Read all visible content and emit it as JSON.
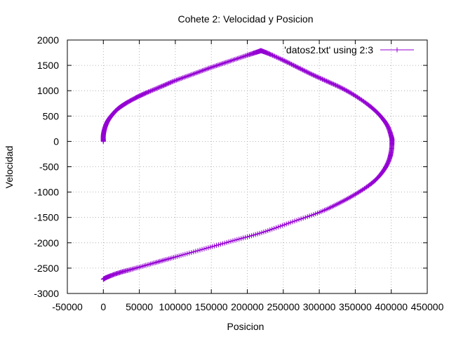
{
  "chart_data": {
    "type": "scatter",
    "title": "Cohete 2: Velocidad y Posicion",
    "xlabel": "Posicion",
    "ylabel": "Velocidad",
    "xlim": [
      -50000,
      450000
    ],
    "ylim": [
      -3000,
      2000
    ],
    "xticks": [
      -50000,
      0,
      50000,
      100000,
      150000,
      200000,
      250000,
      300000,
      350000,
      400000,
      450000
    ],
    "yticks": [
      -3000,
      -2500,
      -2000,
      -1500,
      -1000,
      -500,
      0,
      500,
      1000,
      1500,
      2000
    ],
    "grid": true,
    "legend_position": "top-right",
    "series_color": "#9400d3",
    "series": [
      {
        "name": "'datos2.txt' using 2:3",
        "marker": "plus",
        "phases": [
          {
            "x": [
              0,
              0,
              2000,
              6000,
              12000,
              20000,
              30000,
              45000,
              60000,
              80000,
              100000,
              125000,
              150000,
              175000,
              200000,
              215000,
              219000
            ],
            "y": [
              0,
              120,
              260,
              400,
              520,
              640,
              740,
              860,
              960,
              1080,
              1200,
              1330,
              1460,
              1580,
              1700,
              1770,
              1790
            ]
          },
          {
            "x": [
              219000,
              230000,
              250000,
              270000,
              290000,
              310000,
              330000,
              350000,
              370000,
              385000,
              395000,
              400000,
              401000,
              400000,
              396000,
              388000,
              375000,
              355000,
              330000,
              300000,
              260000,
              220000,
              180000,
              140000,
              100000,
              70000,
              40000,
              20000,
              5000,
              0
            ],
            "y": [
              1790,
              1730,
              1600,
              1460,
              1320,
              1190,
              1060,
              900,
              700,
              500,
              300,
              100,
              0,
              -200,
              -400,
              -600,
              -800,
              -1000,
              -1200,
              -1400,
              -1600,
              -1800,
              -1960,
              -2120,
              -2280,
              -2400,
              -2520,
              -2600,
              -2680,
              -2720
            ]
          }
        ]
      }
    ]
  }
}
